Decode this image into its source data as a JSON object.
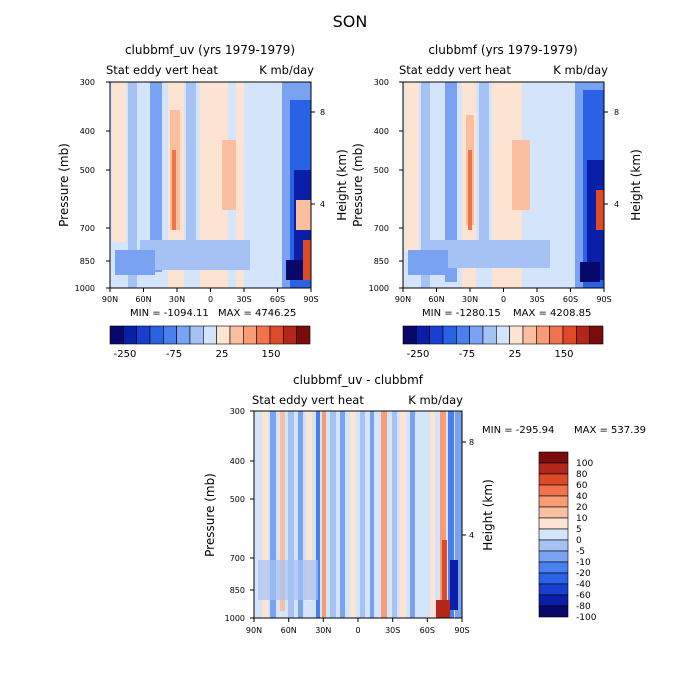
{
  "figure_title": "SON",
  "colors": {
    "abs_scale": [
      "#08086b",
      "#0a1fa8",
      "#1a3fd0",
      "#2a62e6",
      "#4a80ee",
      "#7aa2f2",
      "#a6c2f5",
      "#d4e4fa",
      "#fde3d2",
      "#f9bf9e",
      "#f79c75",
      "#f0734e",
      "#dc4a28",
      "#b3261a",
      "#7a0c0c"
    ],
    "diff_scale": [
      "#08086b",
      "#0a1fa8",
      "#1a3fd0",
      "#2a62e6",
      "#4a80ee",
      "#7aa2f2",
      "#a6c2f5",
      "#d4e4fa",
      "#fde3d2",
      "#f9bf9e",
      "#f79c75",
      "#f0734e",
      "#dc4a28",
      "#b3261a",
      "#7a0c0c"
    ]
  },
  "chart_data": [
    {
      "type": "heatmap",
      "title": "clubbmf_uv (yrs 1979-1979)",
      "left_label": "Stat eddy vert heat",
      "right_label": "K mb/day",
      "xlabel": "",
      "ylabel": "Pressure (mb)",
      "y2label": "Height (km)",
      "x_ticks": [
        "90N",
        "60N",
        "30N",
        "0",
        "30S",
        "60S",
        "90S"
      ],
      "y_ticks": [
        "300",
        "400",
        "500",
        "700",
        "850",
        "1000"
      ],
      "y2_ticks": [
        "8",
        "4"
      ],
      "ylim": [
        1000,
        300
      ],
      "min_text": "MIN = -1094.11",
      "max_text": "MAX = 4746.25",
      "colorbar_labels": [
        "-250",
        "-75",
        "25",
        "150"
      ]
    },
    {
      "type": "heatmap",
      "title": "clubbmf (yrs 1979-1979)",
      "left_label": "Stat eddy vert heat",
      "right_label": "K mb/day",
      "xlabel": "",
      "ylabel": "Pressure (mb)",
      "y2label": "Height (km)",
      "x_ticks": [
        "90N",
        "60N",
        "30N",
        "0",
        "30S",
        "60S",
        "90S"
      ],
      "y_ticks": [
        "300",
        "400",
        "500",
        "700",
        "850",
        "1000"
      ],
      "y2_ticks": [
        "8",
        "4"
      ],
      "ylim": [
        1000,
        300
      ],
      "min_text": "MIN = -1280.15",
      "max_text": "MAX = 4208.85",
      "colorbar_labels": [
        "-250",
        "-75",
        "25",
        "150"
      ]
    },
    {
      "type": "heatmap",
      "title": "clubbmf_uv - clubbmf",
      "left_label": "Stat eddy vert heat",
      "right_label": "K mb/day",
      "xlabel": "",
      "ylabel": "Pressure (mb)",
      "y2label": "Height (km)",
      "x_ticks": [
        "90N",
        "60N",
        "30N",
        "0",
        "30S",
        "60S",
        "90S"
      ],
      "y_ticks": [
        "300",
        "400",
        "500",
        "700",
        "850",
        "1000"
      ],
      "y2_ticks": [
        "8",
        "4"
      ],
      "ylim": [
        1000,
        300
      ],
      "min_text": "MIN = -295.94",
      "max_text": "MAX = 537.39",
      "colorbar_labels": [
        "100",
        "80",
        "60",
        "40",
        "20",
        "10",
        "5",
        "0",
        "-5",
        "-10",
        "-20",
        "-40",
        "-60",
        "-80",
        "-100"
      ]
    }
  ]
}
